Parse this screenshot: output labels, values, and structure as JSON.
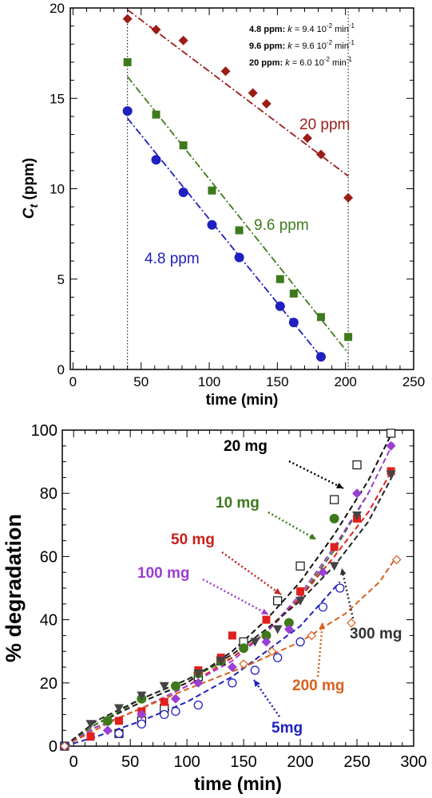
{
  "chart_data": [
    {
      "type": "scatter",
      "xlabel": "time (min)",
      "ylabel": "C_t (ppm)",
      "xlim": [
        -2,
        250
      ],
      "ylim": [
        0,
        20
      ],
      "xticks": [
        "0",
        "50",
        "100",
        "150",
        "200",
        "250"
      ],
      "yticks": [
        "0",
        "5",
        "10",
        "15",
        "20"
      ],
      "vertical_markers": [
        40,
        202
      ],
      "rate_constants": [
        {
          "conc": "4.8 ppm",
          "sep": ":",
          "k": "k",
          "text": " = 9.4 10",
          "exp": "-2",
          "unit": " min",
          "unit_exp": "-1"
        },
        {
          "conc": "9.6 ppm",
          "sep": ":",
          "k": "k",
          "text": " = 9.6 10",
          "exp": "-2",
          "unit": " min",
          "unit_exp": "-1"
        },
        {
          "conc": "20 ppm",
          "sep": ":",
          "k": "k",
          "text": " = 6.0 10",
          "exp": "-2",
          "unit": " min",
          "unit_exp": "-1"
        }
      ],
      "series": [
        {
          "name": "20 ppm",
          "color": "#9b1c17",
          "marker": "diamond",
          "x": [
            40,
            61,
            81,
            112,
            132,
            142,
            172,
            182,
            202
          ],
          "y": [
            19.4,
            18.8,
            18.2,
            16.5,
            15.3,
            14.7,
            12.8,
            11.9,
            9.5
          ],
          "fit": [
            [
              40,
              19.9
            ],
            [
              202,
              10.7
            ]
          ]
        },
        {
          "name": "9.6 ppm",
          "color": "#3d7a1c",
          "marker": "square",
          "x": [
            40,
            61,
            81,
            102,
            122,
            152,
            162,
            182,
            202
          ],
          "y": [
            17.0,
            14.1,
            12.4,
            9.9,
            7.7,
            5.0,
            4.2,
            2.9,
            1.8
          ],
          "fit": [
            [
              40,
              16.2
            ],
            [
              202,
              0.9
            ]
          ]
        },
        {
          "name": "4.8 ppm",
          "color": "#2020c0",
          "marker": "circle",
          "x": [
            40,
            61,
            81,
            102,
            122,
            152,
            162,
            182
          ],
          "y": [
            14.3,
            11.6,
            9.8,
            8.0,
            6.2,
            3.5,
            2.6,
            0.7
          ],
          "fit": [
            [
              40,
              13.9
            ],
            [
              182,
              0.7
            ]
          ]
        }
      ]
    },
    {
      "type": "scatter",
      "xlabel": "time (min)",
      "ylabel": "% degradation",
      "xlim": [
        -10,
        300
      ],
      "ylim": [
        0,
        100
      ],
      "xticks": [
        "0",
        "50",
        "100",
        "150",
        "200",
        "250",
        "300"
      ],
      "yticks": [
        "0",
        "20",
        "40",
        "60",
        "80",
        "100"
      ],
      "series": [
        {
          "name": "20 mg",
          "color": "#111111",
          "marker": "open-square",
          "line_color": "#111111",
          "x": [
            -8,
            40,
            60,
            80,
            110,
            130,
            150,
            180,
            200,
            230,
            250,
            280
          ],
          "y": [
            0,
            4,
            8,
            12,
            22,
            27,
            33,
            46,
            57,
            78,
            89,
            99
          ],
          "fit": [
            [
              -8,
              0
            ],
            [
              20,
              7
            ],
            [
              60,
              14
            ],
            [
              100,
              20
            ],
            [
              140,
              30
            ],
            [
              170,
              40
            ],
            [
              200,
              52
            ],
            [
              230,
              67
            ],
            [
              260,
              84
            ],
            [
              282,
              100
            ]
          ]
        },
        {
          "name": "10 mg",
          "color": "#3d7a1c",
          "marker": "circle",
          "x": [
            -8,
            30,
            60,
            90,
            110,
            130,
            150,
            170,
            190,
            230
          ],
          "y": [
            0,
            8,
            15,
            19,
            23,
            27,
            31,
            35,
            39,
            72
          ],
          "fit": [
            [
              -8,
              0
            ],
            [
              20,
              7
            ],
            [
              60,
              15
            ],
            [
              100,
              21
            ],
            [
              140,
              28
            ],
            [
              170,
              36
            ],
            [
              200,
              47
            ],
            [
              230,
              62
            ],
            [
              260,
              80
            ]
          ]
        },
        {
          "name": "50 mg",
          "color": "#e0201e",
          "marker": "square",
          "x": [
            -8,
            15,
            40,
            60,
            80,
            110,
            130,
            140,
            170,
            200,
            230,
            250,
            280
          ],
          "y": [
            0,
            3,
            8,
            11,
            14,
            24,
            28,
            35,
            40,
            49,
            63,
            72,
            87
          ],
          "fit": [
            [
              -8,
              0
            ],
            [
              20,
              6
            ],
            [
              60,
              12
            ],
            [
              100,
              19
            ],
            [
              140,
              28
            ],
            [
              170,
              36
            ],
            [
              200,
              47
            ],
            [
              230,
              60
            ],
            [
              260,
              74
            ],
            [
              282,
              88
            ]
          ]
        },
        {
          "name": "100 mg",
          "color": "#9b3ed2",
          "marker": "diamond",
          "x": [
            -8,
            30,
            60,
            90,
            110,
            140,
            170,
            190,
            220,
            250,
            280
          ],
          "y": [
            0,
            5,
            10,
            15,
            20,
            25,
            33,
            37,
            55,
            80,
            95
          ],
          "fit": [
            [
              -8,
              0
            ],
            [
              20,
              6
            ],
            [
              60,
              12
            ],
            [
              100,
              19
            ],
            [
              140,
              27
            ],
            [
              170,
              36
            ],
            [
              200,
              48
            ],
            [
              230,
              63
            ],
            [
              260,
              80
            ],
            [
              282,
              96
            ]
          ]
        },
        {
          "name": "300 mg",
          "color": "#444444",
          "marker": "triangle-down",
          "line_color": "#222222",
          "x": [
            -8,
            15,
            40,
            60,
            80,
            110,
            130,
            160,
            180,
            200,
            230,
            250,
            280
          ],
          "y": [
            0,
            7,
            12,
            16,
            19,
            23,
            27,
            33,
            37,
            46,
            57,
            73,
            86
          ],
          "fit": [
            [
              -8,
              0
            ],
            [
              20,
              8
            ],
            [
              60,
              15
            ],
            [
              100,
              21
            ],
            [
              140,
              29
            ],
            [
              170,
              37
            ],
            [
              200,
              46
            ],
            [
              230,
              57
            ],
            [
              260,
              71
            ],
            [
              282,
              86
            ]
          ]
        },
        {
          "name": "5mg",
          "color": "#2020c0",
          "marker": "open-circle",
          "x": [
            -8,
            40,
            60,
            80,
            90,
            110,
            140,
            160,
            180,
            200,
            220,
            235
          ],
          "y": [
            0,
            4,
            7,
            10,
            11,
            13,
            20,
            24,
            28,
            33,
            44,
            50
          ],
          "fit": [
            [
              -8,
              0
            ],
            [
              20,
              3
            ],
            [
              60,
              8
            ],
            [
              100,
              14
            ],
            [
              140,
              22
            ],
            [
              170,
              30
            ],
            [
              200,
              38
            ],
            [
              220,
              46
            ],
            [
              235,
              52
            ]
          ]
        },
        {
          "name": "200 mg",
          "color": "#d9601c",
          "marker": "open-diamond",
          "x": [
            -8,
            150,
            175,
            210,
            245,
            285
          ],
          "y": [
            0,
            26,
            30,
            35,
            39,
            59
          ],
          "fit": [
            [
              -8,
              0
            ],
            [
              40,
              9
            ],
            [
              100,
              18
            ],
            [
              150,
              25
            ],
            [
              200,
              33
            ],
            [
              240,
              42
            ],
            [
              270,
              52
            ],
            [
              285,
              60
            ]
          ]
        }
      ],
      "annotations": [
        {
          "text": "20 mg",
          "color": "#000000"
        },
        {
          "text": "10 mg",
          "color": "#3d7a1c"
        },
        {
          "text": "50 mg",
          "color": "#c8201c"
        },
        {
          "text": "100 mg",
          "color": "#9b3ed2"
        },
        {
          "text": "300 mg",
          "color": "#333333"
        },
        {
          "text": "200 mg",
          "color": "#d9601c"
        },
        {
          "text": "5mg",
          "color": "#2020c0"
        }
      ]
    }
  ]
}
